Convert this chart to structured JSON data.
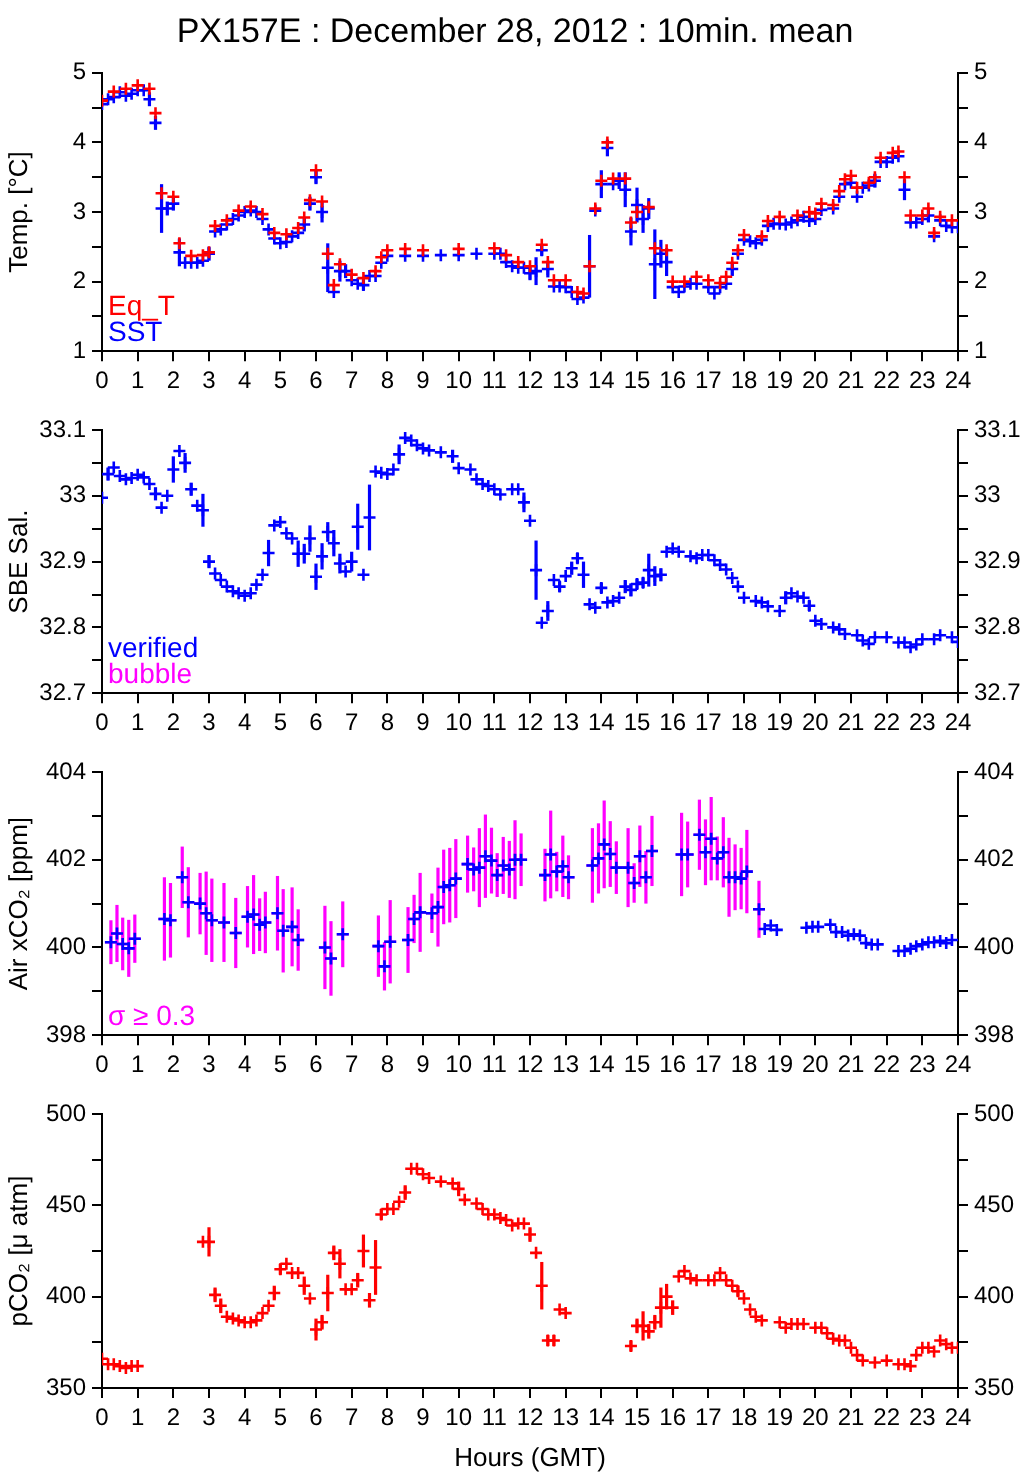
{
  "chart_data": [
    {
      "type": "scatter",
      "title": "PX157E : December 28, 2012 : 10min. mean",
      "ylabel": "Temp. [°C]",
      "xlim": [
        0,
        24
      ],
      "xticks": [
        0,
        1,
        2,
        3,
        4,
        5,
        6,
        7,
        8,
        9,
        10,
        11,
        12,
        13,
        14,
        15,
        16,
        17,
        18,
        19,
        20,
        21,
        22,
        23,
        24
      ],
      "ylim": [
        1,
        5
      ],
      "yticks": [
        1,
        {
          "value": 1.5,
          "label": null
        },
        2,
        {
          "value": 2.5,
          "label": null
        },
        3,
        {
          "value": 3.5,
          "label": null
        },
        4,
        {
          "value": 4.5,
          "label": null
        },
        5
      ],
      "y2lim": [
        1,
        5
      ],
      "y2ticks": [
        1,
        {
          "value": 1.5,
          "label": null
        },
        2,
        {
          "value": 2.5,
          "label": null
        },
        3,
        {
          "value": 3.5,
          "label": null
        },
        4,
        {
          "value": 4.5,
          "label": null
        },
        5
      ],
      "grid": false,
      "legend": "bottom left",
      "marker": "cross",
      "series": [
        {
          "name": "Eq_T",
          "color": "#ff0000",
          "x": [
            0,
            0.33,
            0.67,
            1,
            1.33,
            1.5,
            1.67,
            2,
            2.17,
            2.5,
            2.83,
            3,
            3.17,
            3.5,
            3.83,
            4.17,
            4.5,
            4.83,
            5.17,
            5.5,
            5.67,
            5.83,
            6,
            6.17,
            6.33,
            6.5,
            6.67,
            7,
            7.33,
            7.67,
            7.83,
            8,
            8.5,
            9,
            10,
            11,
            11.33,
            11.67,
            12,
            12.33,
            12.5,
            12.67,
            13,
            13.33,
            13.5,
            13.67,
            13.83,
            14,
            14.17,
            14.33,
            14.67,
            14.83,
            15,
            15.33,
            15.5,
            15.83,
            16,
            16.33,
            16.67,
            17,
            17.33,
            17.5,
            17.67,
            17.83,
            18,
            18.5,
            18.67,
            19,
            19.5,
            19.83,
            20,
            20.17,
            20.5,
            20.67,
            20.83,
            21,
            21.17,
            21.5,
            21.67,
            21.83,
            22.17,
            22.33,
            22.5,
            22.67,
            23,
            23.17,
            23.33,
            23.5,
            23.83
          ],
          "values": [
            4.6,
            4.73,
            4.77,
            4.82,
            4.77,
            4.42,
            3.27,
            3.22,
            2.55,
            2.37,
            2.38,
            2.42,
            2.8,
            2.88,
            3.02,
            3.08,
            2.97,
            2.7,
            2.68,
            2.77,
            2.92,
            3.17,
            3.6,
            3.15,
            2.4,
            1.95,
            2.25,
            2.1,
            2.05,
            2.15,
            2.35,
            2.45,
            2.47,
            2.45,
            2.47,
            2.48,
            2.38,
            2.28,
            2.22,
            2.53,
            2.28,
            2.02,
            2.02,
            1.85,
            1.83,
            2.22,
            3.05,
            3.45,
            4,
            3.48,
            3.48,
            2.85,
            3,
            3.07,
            2.48,
            2.45,
            2,
            2,
            2.07,
            2.02,
            1.98,
            2.07,
            2.27,
            2.45,
            2.67,
            2.65,
            2.87,
            2.93,
            2.95,
            3,
            2.98,
            3.12,
            3.1,
            3.3,
            3.47,
            3.52,
            3.35,
            3.42,
            3.5,
            3.78,
            3.85,
            3.87,
            3.5,
            2.95,
            2.95,
            3.05,
            2.7,
            2.93,
            2.88
          ]
        },
        {
          "name": "SST",
          "color": "#0000ff",
          "x": [
            0,
            0.17,
            0.33,
            0.5,
            0.67,
            0.83,
            1,
            1.17,
            1.33,
            1.5,
            1.67,
            1.83,
            2,
            2.17,
            2.33,
            2.5,
            2.67,
            2.83,
            3,
            3.17,
            3.33,
            3.5,
            3.67,
            3.83,
            4,
            4.17,
            4.33,
            4.5,
            4.67,
            4.83,
            5,
            5.17,
            5.33,
            5.5,
            5.67,
            5.83,
            6,
            6.17,
            6.33,
            6.5,
            6.67,
            6.83,
            7,
            7.17,
            7.33,
            7.5,
            7.67,
            7.83,
            8,
            8.5,
            9,
            9.5,
            10,
            10.5,
            11,
            11.17,
            11.33,
            11.5,
            11.67,
            11.83,
            12,
            12.17,
            12.33,
            12.5,
            12.67,
            12.83,
            13,
            13.17,
            13.33,
            13.5,
            13.67,
            13.83,
            14,
            14.17,
            14.33,
            14.5,
            14.67,
            14.83,
            15,
            15.17,
            15.33,
            15.5,
            15.67,
            15.83,
            16,
            16.17,
            16.33,
            16.5,
            16.67,
            17,
            17.17,
            17.33,
            17.5,
            17.67,
            17.83,
            18,
            18.17,
            18.33,
            18.5,
            18.67,
            18.83,
            19,
            19.17,
            19.33,
            19.5,
            19.67,
            19.83,
            20,
            20.17,
            20.5,
            20.67,
            20.83,
            21,
            21.17,
            21.33,
            21.5,
            21.67,
            21.83,
            22,
            22.17,
            22.33,
            22.5,
            22.67,
            22.83,
            23,
            23.17,
            23.33,
            23.5,
            23.67,
            23.83,
            24
          ],
          "values": [
            4.55,
            4.62,
            4.65,
            4.72,
            4.67,
            4.7,
            4.75,
            4.75,
            4.62,
            4.28,
            3.05,
            3.05,
            3.12,
            2.42,
            2.27,
            2.27,
            2.27,
            2.3,
            2.4,
            2.72,
            2.75,
            2.82,
            2.9,
            2.95,
            3,
            3.02,
            3,
            2.9,
            2.75,
            2.62,
            2.55,
            2.57,
            2.65,
            2.7,
            2.82,
            3.12,
            3.5,
            3,
            2.2,
            1.85,
            2.15,
            2.15,
            2.02,
            1.97,
            1.95,
            2.08,
            2.08,
            2.27,
            2.37,
            2.37,
            2.37,
            2.38,
            2.38,
            2.4,
            2.4,
            2.4,
            2.28,
            2.22,
            2.2,
            2.2,
            2.12,
            2.15,
            2.45,
            2.18,
            1.93,
            1.93,
            1.92,
            1.85,
            1.75,
            1.77,
            2.22,
            3.02,
            3.4,
            3.92,
            3.4,
            3.45,
            3.32,
            2.72,
            3.1,
            2.9,
            3.05,
            2.25,
            2.4,
            2.28,
            1.92,
            1.85,
            1.93,
            1.97,
            1.97,
            1.92,
            1.83,
            1.92,
            1.97,
            2.18,
            2.4,
            2.6,
            2.58,
            2.55,
            2.6,
            2.8,
            2.83,
            2.83,
            2.82,
            2.85,
            2.88,
            2.93,
            2.87,
            2.9,
            3.03,
            3.05,
            3.22,
            3.4,
            3.42,
            3.22,
            3.35,
            3.38,
            3.45,
            3.72,
            3.72,
            3.78,
            3.8,
            3.32,
            2.85,
            2.85,
            2.9,
            2.95,
            2.65,
            2.88,
            2.8,
            2.78,
            2.78
          ],
          "errors": [
            null,
            null,
            null,
            null,
            null,
            null,
            null,
            null,
            0.1,
            0.1,
            0.35,
            0.1,
            0.1,
            0.2,
            null,
            null,
            null,
            null,
            0.1,
            null,
            null,
            null,
            null,
            null,
            null,
            null,
            null,
            null,
            null,
            null,
            null,
            null,
            null,
            null,
            0.1,
            0.1,
            0.1,
            0.15,
            0.35,
            null,
            0.15,
            0.1,
            null,
            null,
            0.08,
            null,
            null,
            null,
            null,
            null,
            null,
            null,
            null,
            null,
            null,
            null,
            null,
            null,
            null,
            null,
            0.1,
            0.2,
            0.08,
            0.12,
            null,
            null,
            null,
            null,
            null,
            null,
            0.45,
            null,
            0.2,
            0.12,
            null,
            0.12,
            0.25,
            0.2,
            0.25,
            0.2,
            0.15,
            0.5,
            0.2,
            0.2,
            null,
            null,
            null,
            null,
            null,
            null,
            null,
            null,
            null,
            0.1,
            null,
            null,
            null,
            null,
            null,
            null,
            null,
            null,
            null,
            null,
            null,
            null,
            null,
            null,
            null,
            null,
            null,
            null,
            null,
            null,
            null,
            null,
            0.1,
            null,
            null,
            null,
            null,
            0.15,
            null,
            null,
            null,
            0.1,
            null,
            null,
            null,
            null,
            null
          ]
        }
      ]
    },
    {
      "type": "scatter",
      "ylabel": "SBE Sal.",
      "xlim": [
        0,
        24
      ],
      "xticks": [
        0,
        1,
        2,
        3,
        4,
        5,
        6,
        7,
        8,
        9,
        10,
        11,
        12,
        13,
        14,
        15,
        16,
        17,
        18,
        19,
        20,
        21,
        22,
        23,
        24
      ],
      "ylim": [
        32.7,
        33.1
      ],
      "yticks": [
        32.7,
        {
          "value": 32.75,
          "label": null
        },
        32.8,
        {
          "value": 32.85,
          "label": null
        },
        32.9,
        {
          "value": 32.95,
          "label": null
        },
        33,
        {
          "value": 33.05,
          "label": null
        },
        33.1
      ],
      "y2lim": [
        32.7,
        33.1
      ],
      "y2ticks": [
        32.7,
        {
          "value": 32.75,
          "label": null
        },
        32.8,
        {
          "value": 32.85,
          "label": null
        },
        32.9,
        {
          "value": 32.95,
          "label": null
        },
        33,
        {
          "value": 33.05,
          "label": null
        },
        33.1
      ],
      "grid": false,
      "legend": "bottom left",
      "marker": "cross",
      "series": [
        {
          "name": "verified",
          "color": "#0000ff",
          "x": [
            0,
            0.17,
            0.33,
            0.5,
            0.67,
            0.83,
            1,
            1.17,
            1.33,
            1.5,
            1.67,
            1.83,
            2,
            2.17,
            2.33,
            2.5,
            2.67,
            2.83,
            3,
            3.17,
            3.33,
            3.5,
            3.67,
            3.83,
            4,
            4.17,
            4.33,
            4.5,
            4.67,
            4.83,
            5,
            5.17,
            5.33,
            5.5,
            5.67,
            5.83,
            6,
            6.17,
            6.33,
            6.5,
            6.67,
            6.83,
            7,
            7.17,
            7.33,
            7.5,
            7.67,
            7.83,
            8,
            8.17,
            8.33,
            8.5,
            8.67,
            8.83,
            9,
            9.17,
            9.5,
            9.83,
            10,
            10.33,
            10.5,
            10.67,
            10.83,
            11,
            11.17,
            11.5,
            11.67,
            11.83,
            12,
            12.17,
            12.33,
            12.5,
            12.67,
            12.83,
            13,
            13.17,
            13.33,
            13.5,
            13.67,
            13.83,
            14,
            14.17,
            14.33,
            14.5,
            14.67,
            14.83,
            15,
            15.17,
            15.33,
            15.5,
            15.67,
            15.83,
            16,
            16.17,
            16.5,
            16.67,
            16.83,
            17,
            17.17,
            17.33,
            17.5,
            17.67,
            17.83,
            18,
            18.33,
            18.5,
            18.67,
            19,
            19.17,
            19.33,
            19.5,
            19.67,
            19.83,
            20,
            20.17,
            20.5,
            20.67,
            20.83,
            21.17,
            21.33,
            21.5,
            21.67,
            22,
            22.33,
            22.5,
            22.67,
            22.83,
            23,
            23.33,
            23.5,
            23.83,
            24
          ],
          "values": [
            32.997,
            33.033,
            33.043,
            33.03,
            33.025,
            33.027,
            33.032,
            33.028,
            33.018,
            33.003,
            32.982,
            33,
            33.04,
            33.068,
            33.05,
            33.01,
            32.985,
            32.978,
            32.9,
            32.882,
            32.872,
            32.862,
            32.855,
            32.852,
            32.848,
            32.852,
            32.865,
            32.88,
            32.913,
            32.955,
            32.96,
            32.943,
            32.935,
            32.912,
            32.912,
            32.935,
            32.877,
            32.908,
            32.945,
            32.928,
            32.897,
            32.885,
            32.9,
            32.953,
            32.88,
            32.967,
            33.037,
            33.035,
            33.033,
            33.04,
            33.063,
            33.088,
            33.084,
            33.077,
            33.072,
            33.069,
            33.066,
            33.06,
            33.042,
            33.04,
            33.025,
            33.018,
            33.015,
            33.01,
            33.002,
            33.01,
            33.01,
            32.99,
            32.962,
            32.887,
            32.807,
            32.825,
            32.872,
            32.862,
            32.878,
            32.89,
            32.905,
            32.88,
            32.835,
            32.83,
            32.86,
            32.838,
            32.84,
            32.845,
            32.862,
            32.857,
            32.866,
            32.868,
            32.887,
            32.878,
            32.88,
            32.915,
            32.92,
            32.915,
            32.908,
            32.905,
            32.91,
            32.91,
            32.902,
            32.895,
            32.888,
            32.875,
            32.862,
            32.845,
            32.84,
            32.838,
            32.832,
            32.825,
            32.845,
            32.852,
            32.847,
            32.845,
            32.833,
            32.81,
            32.805,
            32.8,
            32.797,
            32.79,
            32.788,
            32.78,
            32.775,
            32.785,
            32.785,
            32.777,
            32.777,
            32.77,
            32.774,
            32.782,
            32.782,
            32.788,
            32.785,
            32.778
          ],
          "errors": [
            null,
            0.01,
            null,
            null,
            null,
            null,
            null,
            null,
            null,
            0.01,
            null,
            null,
            0.02,
            null,
            0.015,
            0.01,
            null,
            0.025,
            0.01,
            null,
            null,
            null,
            null,
            null,
            null,
            null,
            null,
            null,
            0.02,
            null,
            null,
            null,
            null,
            0.02,
            0.015,
            0.02,
            0.02,
            0.02,
            0.015,
            0.02,
            0.015,
            null,
            0.015,
            0.035,
            null,
            0.05,
            null,
            null,
            null,
            null,
            0.015,
            null,
            null,
            null,
            null,
            null,
            null,
            0.01,
            null,
            null,
            null,
            null,
            null,
            null,
            null,
            null,
            null,
            0.015,
            null,
            0.045,
            null,
            0.015,
            null,
            0.008,
            null,
            0.01,
            0.008,
            0.02,
            null,
            null,
            0.008,
            null,
            null,
            null,
            0.01,
            0.01,
            0.008,
            0.008,
            0.025,
            0.015,
            0.01,
            null,
            null,
            null,
            null,
            null,
            null,
            null,
            null,
            null,
            null,
            null,
            null,
            null,
            null,
            null,
            null,
            null,
            0.01,
            null,
            null,
            null,
            0.008,
            null,
            null,
            null,
            null,
            null,
            null,
            null,
            null,
            null,
            null,
            null,
            null,
            null,
            null,
            null,
            null,
            null,
            null,
            null
          ]
        },
        {
          "name": "bubble",
          "color": "#ff00ff"
        }
      ]
    },
    {
      "type": "scatter",
      "ylabel": "Air xCO₂ [ppm]",
      "xlim": [
        0,
        24
      ],
      "xticks": [
        0,
        1,
        2,
        3,
        4,
        5,
        6,
        7,
        8,
        9,
        10,
        11,
        12,
        13,
        14,
        15,
        16,
        17,
        18,
        19,
        20,
        21,
        22,
        23,
        24
      ],
      "ylim": [
        398,
        404
      ],
      "yticks": [
        398,
        {
          "value": 399,
          "label": null
        },
        400,
        {
          "value": 401,
          "label": null
        },
        402,
        {
          "value": 403,
          "label": null
        },
        404
      ],
      "y2lim": [
        398,
        404
      ],
      "y2ticks": [
        398,
        {
          "value": 399,
          "label": null
        },
        400,
        {
          "value": 401,
          "label": null
        },
        402,
        {
          "value": 403,
          "label": null
        },
        404
      ],
      "grid": false,
      "legend": "bottom left",
      "marker": "cross",
      "series": [
        {
          "color": "#0000ff",
          "x": [
            0.25,
            0.42,
            0.58,
            0.75,
            0.92,
            1.75,
            1.92,
            2.25,
            2.42,
            2.75,
            2.92,
            3.08,
            3.42,
            3.75,
            4.08,
            4.25,
            4.42,
            4.58,
            4.92,
            5.08,
            5.33,
            5.5,
            6.25,
            6.42,
            6.75,
            7.75,
            7.92,
            8.08,
            8.58,
            8.75,
            8.92,
            9.25,
            9.42,
            9.58,
            9.75,
            9.92,
            10.25,
            10.42,
            10.58,
            10.75,
            10.92,
            11.08,
            11.25,
            11.42,
            11.58,
            11.75,
            12.42,
            12.58,
            12.75,
            12.92,
            13.08,
            13.75,
            13.92,
            14.08,
            14.25,
            14.42,
            14.75,
            14.92,
            15.08,
            15.25,
            15.42,
            16.25,
            16.42,
            16.75,
            16.92,
            17.08,
            17.25,
            17.42,
            17.58,
            17.75,
            17.92,
            18.08,
            18.42,
            18.58,
            18.75,
            18.92,
            19.75,
            19.92,
            20.08,
            20.42,
            20.58,
            20.75,
            20.92,
            21.08,
            21.25,
            21.42,
            21.58,
            21.75,
            22.33,
            22.5,
            22.67,
            22.83,
            23,
            23.17,
            23.33,
            23.5,
            23.67,
            23.83
          ],
          "values": [
            400.12,
            400.32,
            400.08,
            399.98,
            400.2,
            400.65,
            400.62,
            401.6,
            401.03,
            401,
            400.78,
            400.62,
            400.57,
            400.33,
            400.7,
            400.75,
            400.52,
            400.57,
            400.78,
            400.38,
            400.47,
            400.17,
            400,
            399.75,
            400.3,
            400.03,
            399.57,
            400.13,
            400.17,
            400.65,
            400.8,
            400.78,
            400.92,
            401.38,
            401.42,
            401.57,
            401.9,
            401.78,
            401.82,
            402.08,
            401.98,
            401.65,
            401.87,
            401.78,
            402,
            402,
            401.65,
            402.12,
            401.73,
            401.85,
            401.6,
            401.87,
            402.03,
            402.35,
            402.13,
            401.82,
            401.82,
            401.47,
            402.08,
            401.6,
            402.2,
            402.12,
            402.12,
            402.57,
            402.17,
            402.48,
            402.03,
            402.17,
            401.6,
            401.6,
            401.57,
            401.73,
            400.87,
            400.42,
            400.5,
            400.4,
            400.45,
            400.47,
            400.47,
            400.52,
            400.35,
            400.35,
            400.27,
            400.3,
            400.27,
            400.1,
            400.07,
            400.07,
            399.92,
            399.92,
            399.97,
            400.03,
            400.07,
            400.12,
            400.12,
            400.15,
            400.1,
            400.17
          ]
        },
        {
          "name": "σ ≥ 0.3",
          "color": "#ff00ff",
          "x": [
            0.25,
            0.42,
            0.58,
            0.75,
            0.92,
            1.75,
            1.92,
            2.25,
            2.42,
            2.75,
            2.92,
            3.08,
            3.42,
            3.75,
            4.08,
            4.25,
            4.42,
            4.58,
            4.92,
            5.08,
            5.33,
            5.5,
            6.25,
            6.42,
            6.75,
            7.75,
            7.92,
            8.08,
            8.58,
            8.75,
            8.92,
            9.25,
            9.42,
            9.58,
            9.75,
            9.92,
            10.25,
            10.42,
            10.58,
            10.75,
            10.92,
            11.08,
            11.25,
            11.42,
            11.58,
            11.75,
            12.42,
            12.58,
            12.75,
            12.92,
            13.08,
            13.75,
            13.92,
            14.08,
            14.25,
            14.42,
            14.75,
            14.92,
            15.08,
            15.25,
            15.42,
            16.25,
            16.42,
            16.75,
            16.92,
            17.08,
            17.25,
            17.42,
            17.58,
            17.75,
            17.92,
            18.08,
            18.42
          ],
          "values": [
            400.12,
            400.32,
            400.08,
            399.98,
            400.2,
            400.65,
            400.62,
            401.6,
            401.03,
            401,
            400.78,
            400.62,
            400.57,
            400.33,
            400.7,
            400.75,
            400.52,
            400.57,
            400.78,
            400.38,
            400.47,
            400.17,
            400,
            399.75,
            400.3,
            400.03,
            399.57,
            400.13,
            400.17,
            400.65,
            400.8,
            400.78,
            400.92,
            401.38,
            401.42,
            401.57,
            401.9,
            401.78,
            401.82,
            402.08,
            401.98,
            401.65,
            401.87,
            401.78,
            402,
            402,
            401.65,
            402.12,
            401.73,
            401.85,
            401.6,
            401.87,
            402.03,
            402.35,
            402.13,
            401.82,
            401.82,
            401.47,
            402.08,
            401.6,
            402.2,
            402.12,
            402.12,
            402.57,
            402.17,
            402.48,
            402.03,
            402.17,
            401.6,
            401.6,
            401.57,
            401.73,
            400.87
          ],
          "errors": [
            0.5,
            0.65,
            0.6,
            0.65,
            0.55,
            0.95,
            0.85,
            0.7,
            0.8,
            0.7,
            0.95,
            0.95,
            0.9,
            0.8,
            0.7,
            0.9,
            0.6,
            0.7,
            0.85,
            0.95,
            0.9,
            0.7,
            0.95,
            0.85,
            0.75,
            0.7,
            0.55,
            0.95,
            0.75,
            0.55,
            0.9,
            0.45,
            0.9,
            0.85,
            0.85,
            0.9,
            0.65,
            0.5,
            0.9,
            0.95,
            0.75,
            0.5,
            0.65,
            0.65,
            0.9,
            0.6,
            0.6,
            1,
            0.45,
            0.7,
            0.5,
            0.85,
            0.8,
            1,
            0.75,
            0.6,
            0.9,
            0.45,
            0.7,
            0.6,
            0.8,
            0.95,
            0.75,
            0.8,
            0.75,
            0.95,
            0.5,
            0.8,
            0.9,
            0.75,
            0.7,
            0.95,
            0.65
          ]
        }
      ]
    },
    {
      "type": "scatter",
      "xlabel": "Hours (GMT)",
      "ylabel": "pCO₂ [μ atm]",
      "xlim": [
        0,
        24
      ],
      "xticks": [
        0,
        1,
        2,
        3,
        4,
        5,
        6,
        7,
        8,
        9,
        10,
        11,
        12,
        13,
        14,
        15,
        16,
        17,
        18,
        19,
        20,
        21,
        22,
        23,
        24
      ],
      "ylim": [
        350,
        500
      ],
      "yticks": [
        350,
        {
          "value": 375,
          "label": null
        },
        400,
        {
          "value": 425,
          "label": null
        },
        450,
        {
          "value": 475,
          "label": null
        },
        500
      ],
      "y2lim": [
        350,
        500
      ],
      "y2ticks": [
        350,
        {
          "value": 375,
          "label": null
        },
        400,
        {
          "value": 425,
          "label": null
        },
        450,
        {
          "value": 475,
          "label": null
        },
        500
      ],
      "grid": false,
      "marker": "cross",
      "series": [
        {
          "color": "#ff0000",
          "x": [
            0,
            0.17,
            0.33,
            0.5,
            0.67,
            0.83,
            1,
            2.83,
            3,
            3.17,
            3.33,
            3.5,
            3.67,
            3.83,
            4,
            4.17,
            4.33,
            4.5,
            4.67,
            4.83,
            5,
            5.17,
            5.33,
            5.5,
            5.67,
            5.83,
            6,
            6.17,
            6.33,
            6.5,
            6.67,
            6.83,
            7,
            7.17,
            7.33,
            7.5,
            7.67,
            7.83,
            8,
            8.17,
            8.33,
            8.5,
            8.67,
            8.83,
            9,
            9.17,
            9.5,
            9.83,
            10,
            10.17,
            10.5,
            10.67,
            10.83,
            11,
            11.17,
            11.33,
            11.5,
            11.67,
            11.83,
            12,
            12.17,
            12.33,
            12.5,
            12.67,
            12.83,
            13,
            14.83,
            15,
            15.17,
            15.33,
            15.5,
            15.67,
            15.83,
            16,
            16.17,
            16.33,
            16.5,
            16.67,
            17,
            17.17,
            17.33,
            17.5,
            17.67,
            17.83,
            18,
            18.17,
            18.33,
            18.5,
            19,
            19.17,
            19.33,
            19.5,
            19.67,
            20,
            20.17,
            20.33,
            20.5,
            20.67,
            20.83,
            21,
            21.17,
            21.33,
            21.67,
            22,
            22.33,
            22.5,
            22.67,
            22.83,
            23,
            23.17,
            23.33,
            23.5,
            23.67,
            23.83,
            24
          ],
          "values": [
            366,
            363,
            363,
            362,
            361,
            362,
            362,
            430,
            430,
            401,
            395,
            389,
            388,
            387,
            386,
            386,
            387,
            391,
            395,
            402,
            415,
            418,
            413,
            413,
            406,
            399,
            382,
            386,
            402,
            424,
            418,
            404,
            404,
            409,
            425,
            398,
            416,
            445,
            448,
            448,
            452,
            457,
            470,
            470,
            467,
            465,
            463,
            462,
            459,
            453,
            451,
            448,
            445,
            445,
            443,
            442,
            439,
            440,
            440,
            434,
            424,
            406,
            376,
            376,
            393,
            391,
            373,
            384,
            384,
            381,
            386,
            394,
            400,
            394,
            411,
            414,
            410,
            409,
            409,
            409,
            413,
            409,
            406,
            403,
            399,
            393,
            389,
            387,
            386,
            383,
            385,
            385,
            385,
            383,
            383,
            380,
            377,
            376,
            376,
            372,
            368,
            365,
            364,
            365,
            363,
            363,
            362,
            368,
            372,
            372,
            370,
            376,
            374,
            372,
            372
          ],
          "errors": [
            null,
            null,
            null,
            null,
            null,
            null,
            null,
            null,
            8,
            4,
            4,
            null,
            null,
            null,
            null,
            null,
            null,
            null,
            null,
            4,
            3,
            null,
            null,
            null,
            5,
            null,
            6,
            4,
            10,
            4,
            8,
            null,
            null,
            4,
            9,
            4,
            15,
            3,
            null,
            null,
            null,
            4,
            null,
            null,
            null,
            null,
            null,
            null,
            4,
            null,
            null,
            null,
            null,
            null,
            null,
            null,
            null,
            null,
            null,
            4,
            null,
            13,
            3,
            3,
            null,
            null,
            3,
            4,
            8,
            4,
            4,
            11,
            7,
            4,
            null,
            null,
            null,
            null,
            null,
            null,
            null,
            null,
            null,
            3,
            null,
            null,
            null,
            null,
            null,
            null,
            null,
            null,
            null,
            null,
            null,
            null,
            null,
            null,
            null,
            null,
            null,
            null,
            null,
            null,
            null,
            null,
            null,
            null,
            null,
            null,
            null,
            null,
            null,
            null,
            null
          ]
        }
      ]
    }
  ]
}
